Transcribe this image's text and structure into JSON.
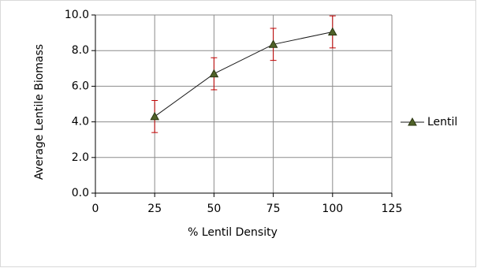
{
  "chart_data": {
    "type": "line",
    "x_label": "% Lentil Density",
    "y_label": "Average Lentile Biomass",
    "x": [
      25,
      50,
      75,
      100
    ],
    "series": [
      {
        "name": "Lentil",
        "color": "#4f6228",
        "values": [
          4.3,
          6.7,
          8.35,
          9.05
        ],
        "errors": [
          0.9,
          0.9,
          0.9,
          0.9
        ],
        "error_color": "#c00000"
      }
    ],
    "xlim": [
      0,
      125
    ],
    "xticks": [
      0,
      25,
      50,
      75,
      100,
      125
    ],
    "ylim": [
      0,
      10
    ],
    "yticks": [
      {
        "value": 0,
        "label": "0.0"
      },
      {
        "value": 2,
        "label": "2.0"
      },
      {
        "value": 4,
        "label": "4.0"
      },
      {
        "value": 6,
        "label": "6.0"
      },
      {
        "value": 8,
        "label": "8.0"
      },
      {
        "value": 10,
        "label": "10.0"
      }
    ],
    "grid": true,
    "legend": "right"
  }
}
